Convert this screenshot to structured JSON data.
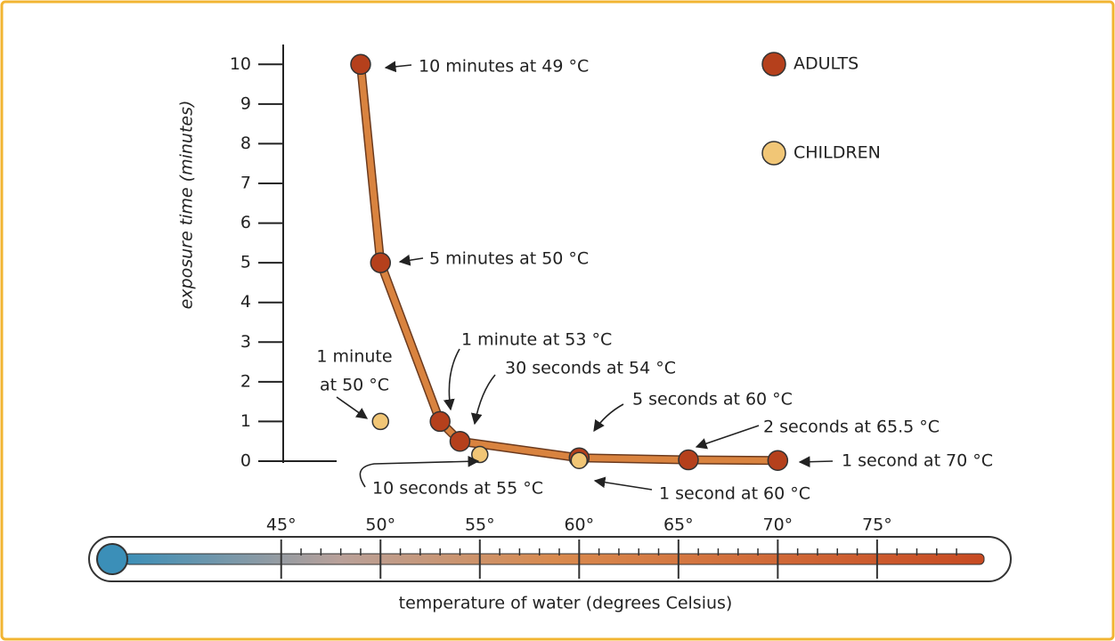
{
  "chart_data": {
    "type": "line",
    "xlabel": "temperature of water (degrees Celsius)",
    "ylabel": "exposure time (minutes)",
    "xlim": [
      36,
      82
    ],
    "ylim": [
      0,
      10.5
    ],
    "xticks": [
      {
        "value": 45,
        "label": "45°"
      },
      {
        "value": 50,
        "label": "50°"
      },
      {
        "value": 55,
        "label": "55°"
      },
      {
        "value": 60,
        "label": "60°"
      },
      {
        "value": 65,
        "label": "65°"
      },
      {
        "value": 70,
        "label": "70°"
      },
      {
        "value": 75,
        "label": "75°"
      }
    ],
    "yticks": [
      0,
      1,
      2,
      3,
      4,
      5,
      6,
      7,
      8,
      9,
      10
    ],
    "series": [
      {
        "name": "ADULTS",
        "color": "#b5401c",
        "line_color": "#d9833f",
        "x": [
          49,
          50,
          53,
          54,
          60,
          65.5,
          70
        ],
        "values": [
          10,
          5,
          1,
          0.5,
          0.083,
          0.033,
          0.017
        ]
      },
      {
        "name": "CHILDREN",
        "color": "#f1c676",
        "x": [
          50,
          55,
          60
        ],
        "values": [
          1,
          0.167,
          0.017
        ]
      }
    ],
    "annotations": [
      "10 minutes at 49 °C",
      "5 minutes at 50 °C",
      "1 minute at 53 °C",
      "30 seconds at 54 °C",
      "5 seconds at 60 °C",
      "2 seconds at 65.5 °C",
      "1 second at 70 °C",
      "1 minute",
      "at 50 °C",
      "10 seconds at 55 °C",
      "1 second at 60 °C"
    ]
  }
}
